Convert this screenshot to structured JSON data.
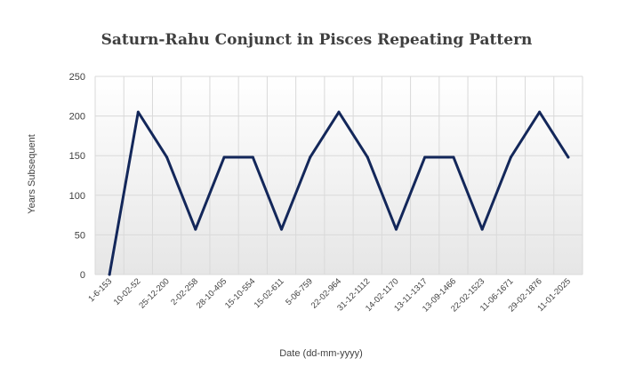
{
  "chart_data": {
    "type": "line",
    "title": "Saturn-Rahu Conjunct in Pisces Repeating Pattern",
    "xlabel": "Date (dd-mm-yyyy)",
    "ylabel": "Years Subsequent",
    "ylim": [
      0,
      250
    ],
    "yticks": [
      0,
      50,
      100,
      150,
      200,
      250
    ],
    "grid": true,
    "legend": "none",
    "categories": [
      "1-6-153",
      "10-02-52",
      "25-12-200",
      "2-02-258",
      "28-10-405",
      "15-10-554",
      "15-02-611",
      "5-06-759",
      "22-02-964",
      "31-12-1112",
      "14-02-1170",
      "13-11-1317",
      "13-09-1466",
      "22-02-1523",
      "11-06-1671",
      "29-02-1876",
      "11-01-2025"
    ],
    "series": [
      {
        "values": [
          0,
          205,
          148,
          57,
          148,
          148,
          57,
          148,
          205,
          148,
          57,
          148,
          148,
          57,
          148,
          205,
          148
        ]
      }
    ]
  },
  "colors": {
    "line": "#13275a",
    "grid": "#d9d9d9",
    "plot_bg_top": "#ffffff",
    "plot_bg_bottom": "#e6e6e6",
    "text": "#3f3f3f"
  }
}
